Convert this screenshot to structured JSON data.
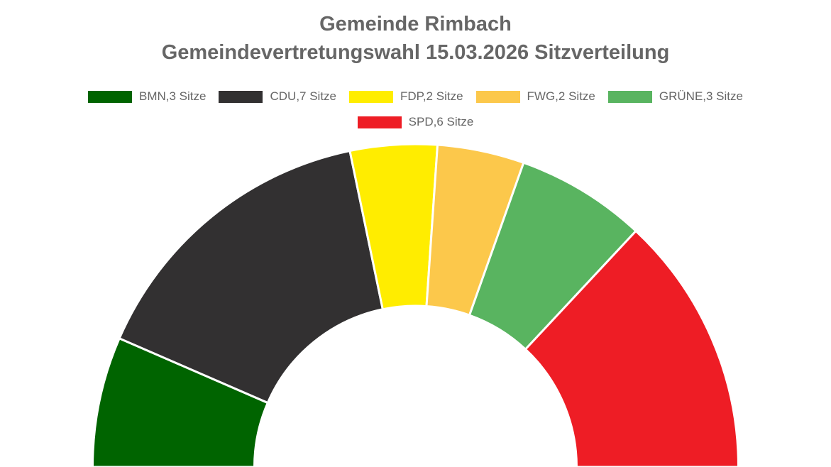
{
  "chart_data": {
    "type": "pie",
    "subtype": "half-donut",
    "title": "Gemeinde Rimbach",
    "subtitle": "Gemeindevertretungswahl 15.03.2026 Sitzverteilung",
    "legend_position": "top",
    "series": [
      {
        "name": "BMN",
        "label": "BMN,3 Sitze",
        "value": 3,
        "color": "#006400"
      },
      {
        "name": "CDU",
        "label": "CDU,7 Sitze",
        "value": 7,
        "color": "#323031"
      },
      {
        "name": "FDP",
        "label": "FDP,2 Sitze",
        "value": 2,
        "color": "#ffed00"
      },
      {
        "name": "FWG",
        "label": "FWG,2 Sitze",
        "value": 2,
        "color": "#fcc84b"
      },
      {
        "name": "GRÜNE",
        "label": "GRÜNE,3 Sitze",
        "value": 3,
        "color": "#59b460"
      },
      {
        "name": "SPD",
        "label": "SPD,6 Sitze",
        "value": 6,
        "color": "#ee1d25"
      }
    ]
  }
}
